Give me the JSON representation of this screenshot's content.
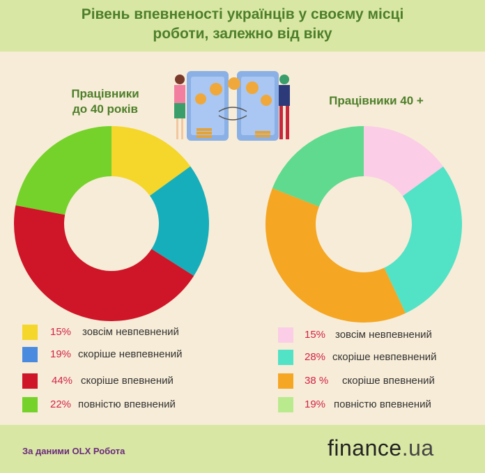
{
  "title_line1": "Рівень впевненості українців у своєму місці",
  "title_line2": "роботи, залежно від віку",
  "source": "За даними OLX Робота",
  "brand_main": "finance",
  "brand_domain": ".ua",
  "chart_data": [
    {
      "type": "pie",
      "title_line1": "Працівники",
      "title_line2": "до 40 років",
      "categories": [
        "зовсім невпевнений",
        "скоріше невпевнений",
        "скоріше впевнений",
        "повністю впевнений"
      ],
      "values": [
        15,
        19,
        44,
        22
      ],
      "value_labels": [
        "15%",
        "19%",
        "44%",
        "22%"
      ],
      "slice_colors": [
        "#f5d62b",
        "#17aebb",
        "#cf1528",
        "#74d22a"
      ],
      "legend_colors": [
        "#f5d62b",
        "#4a8be0",
        "#cf1528",
        "#74d22a"
      ]
    },
    {
      "type": "pie",
      "title_line1": "Працівники 40 +",
      "categories": [
        "зовсім невпевнений",
        "скоріше невпевнений",
        "скоріше впевнений",
        "повністю впевнений"
      ],
      "values": [
        15,
        28,
        38,
        19
      ],
      "value_labels": [
        "15%",
        "28%",
        "38 %",
        "19%"
      ],
      "slice_colors": [
        "#fbcde6",
        "#52e2c6",
        "#f5a623",
        "#5fda8e"
      ],
      "legend_colors": [
        "#fbcde6",
        "#52e2c6",
        "#f5a623",
        "#b9eb8e"
      ]
    }
  ]
}
